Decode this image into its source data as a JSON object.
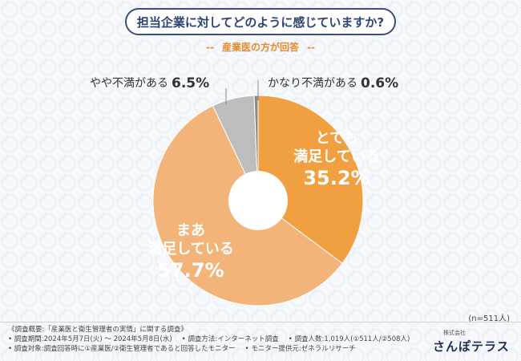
{
  "header": {
    "title": "担当企業に対してどのように感じていますか?",
    "subtitle": "産業医の方が回答",
    "subtitle_dash": "--"
  },
  "colors": {
    "very_satisfied": "#f0a040",
    "somewhat_satisfied": "#f2b478",
    "somewhat_dissatisfied": "#bdbdbd",
    "dissatisfied": "#8a8a8a",
    "title_border": "#3a4f7a",
    "accent": "#e8892a"
  },
  "chart_data": {
    "type": "pie",
    "style": "donut",
    "start_angle_deg": 0,
    "direction": "clockwise",
    "slices": [
      {
        "key": "very_satisfied",
        "label_lines": [
          "とても",
          "満足している"
        ],
        "value": 35.2,
        "value_label": "35.2%"
      },
      {
        "key": "somewhat_satisfied",
        "label_lines": [
          "まあ",
          "満足している"
        ],
        "value": 57.7,
        "value_label": "57.7%"
      },
      {
        "key": "somewhat_dissatisfied",
        "label_lines": [
          "やや不満がある"
        ],
        "value": 6.5,
        "value_label": "6.5%"
      },
      {
        "key": "dissatisfied",
        "label_lines": [
          "かなり不満がある"
        ],
        "value": 0.6,
        "value_label": "0.6%"
      }
    ],
    "sample_note": "(n=511人)"
  },
  "footer": {
    "heading": "《調査概要:「産業医と衛生管理者の実情」に関する調査》",
    "period": "• 調査期間:2024年5月7日(火) ～ 2024年5月8日(水)",
    "method": "• 調査方法:インターネット調査",
    "count": "• 調査人数:1,019人(①511人/②508人)",
    "target": "• 調査対象:調査回答時に①産業医/②衛生管理者であると回答したモニター",
    "provider": "• モニター提供元:ゼネラルリサーチ",
    "brand_small": "株式会社",
    "brand": "さんぽテラス"
  }
}
